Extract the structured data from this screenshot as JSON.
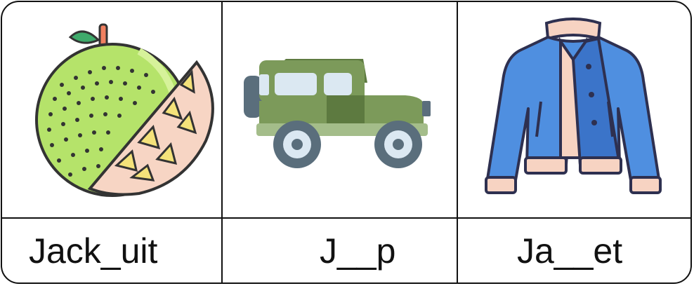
{
  "cards": [
    {
      "label": "Jack_uit",
      "icon": "jackfruit-icon"
    },
    {
      "label": "J__p",
      "icon": "jeep-icon"
    },
    {
      "label": "Ja__et",
      "icon": "jacket-icon"
    }
  ],
  "colors": {
    "border": "#111111",
    "fruit_green": "#b5e36a",
    "fruit_flesh": "#f7d5c4",
    "seed_yellow": "#f4e27a",
    "leaf_green": "#3faa6b",
    "jeep_green": "#7c9a5a",
    "jeep_dark": "#5d7a40",
    "jeep_light": "#a4bd8a",
    "window": "#dbe8f2",
    "tire": "#5a6e7c",
    "jacket_blue": "#4f8fe0",
    "jacket_dark": "#3b74c9",
    "cuff_pink": "#f7d3c2"
  }
}
